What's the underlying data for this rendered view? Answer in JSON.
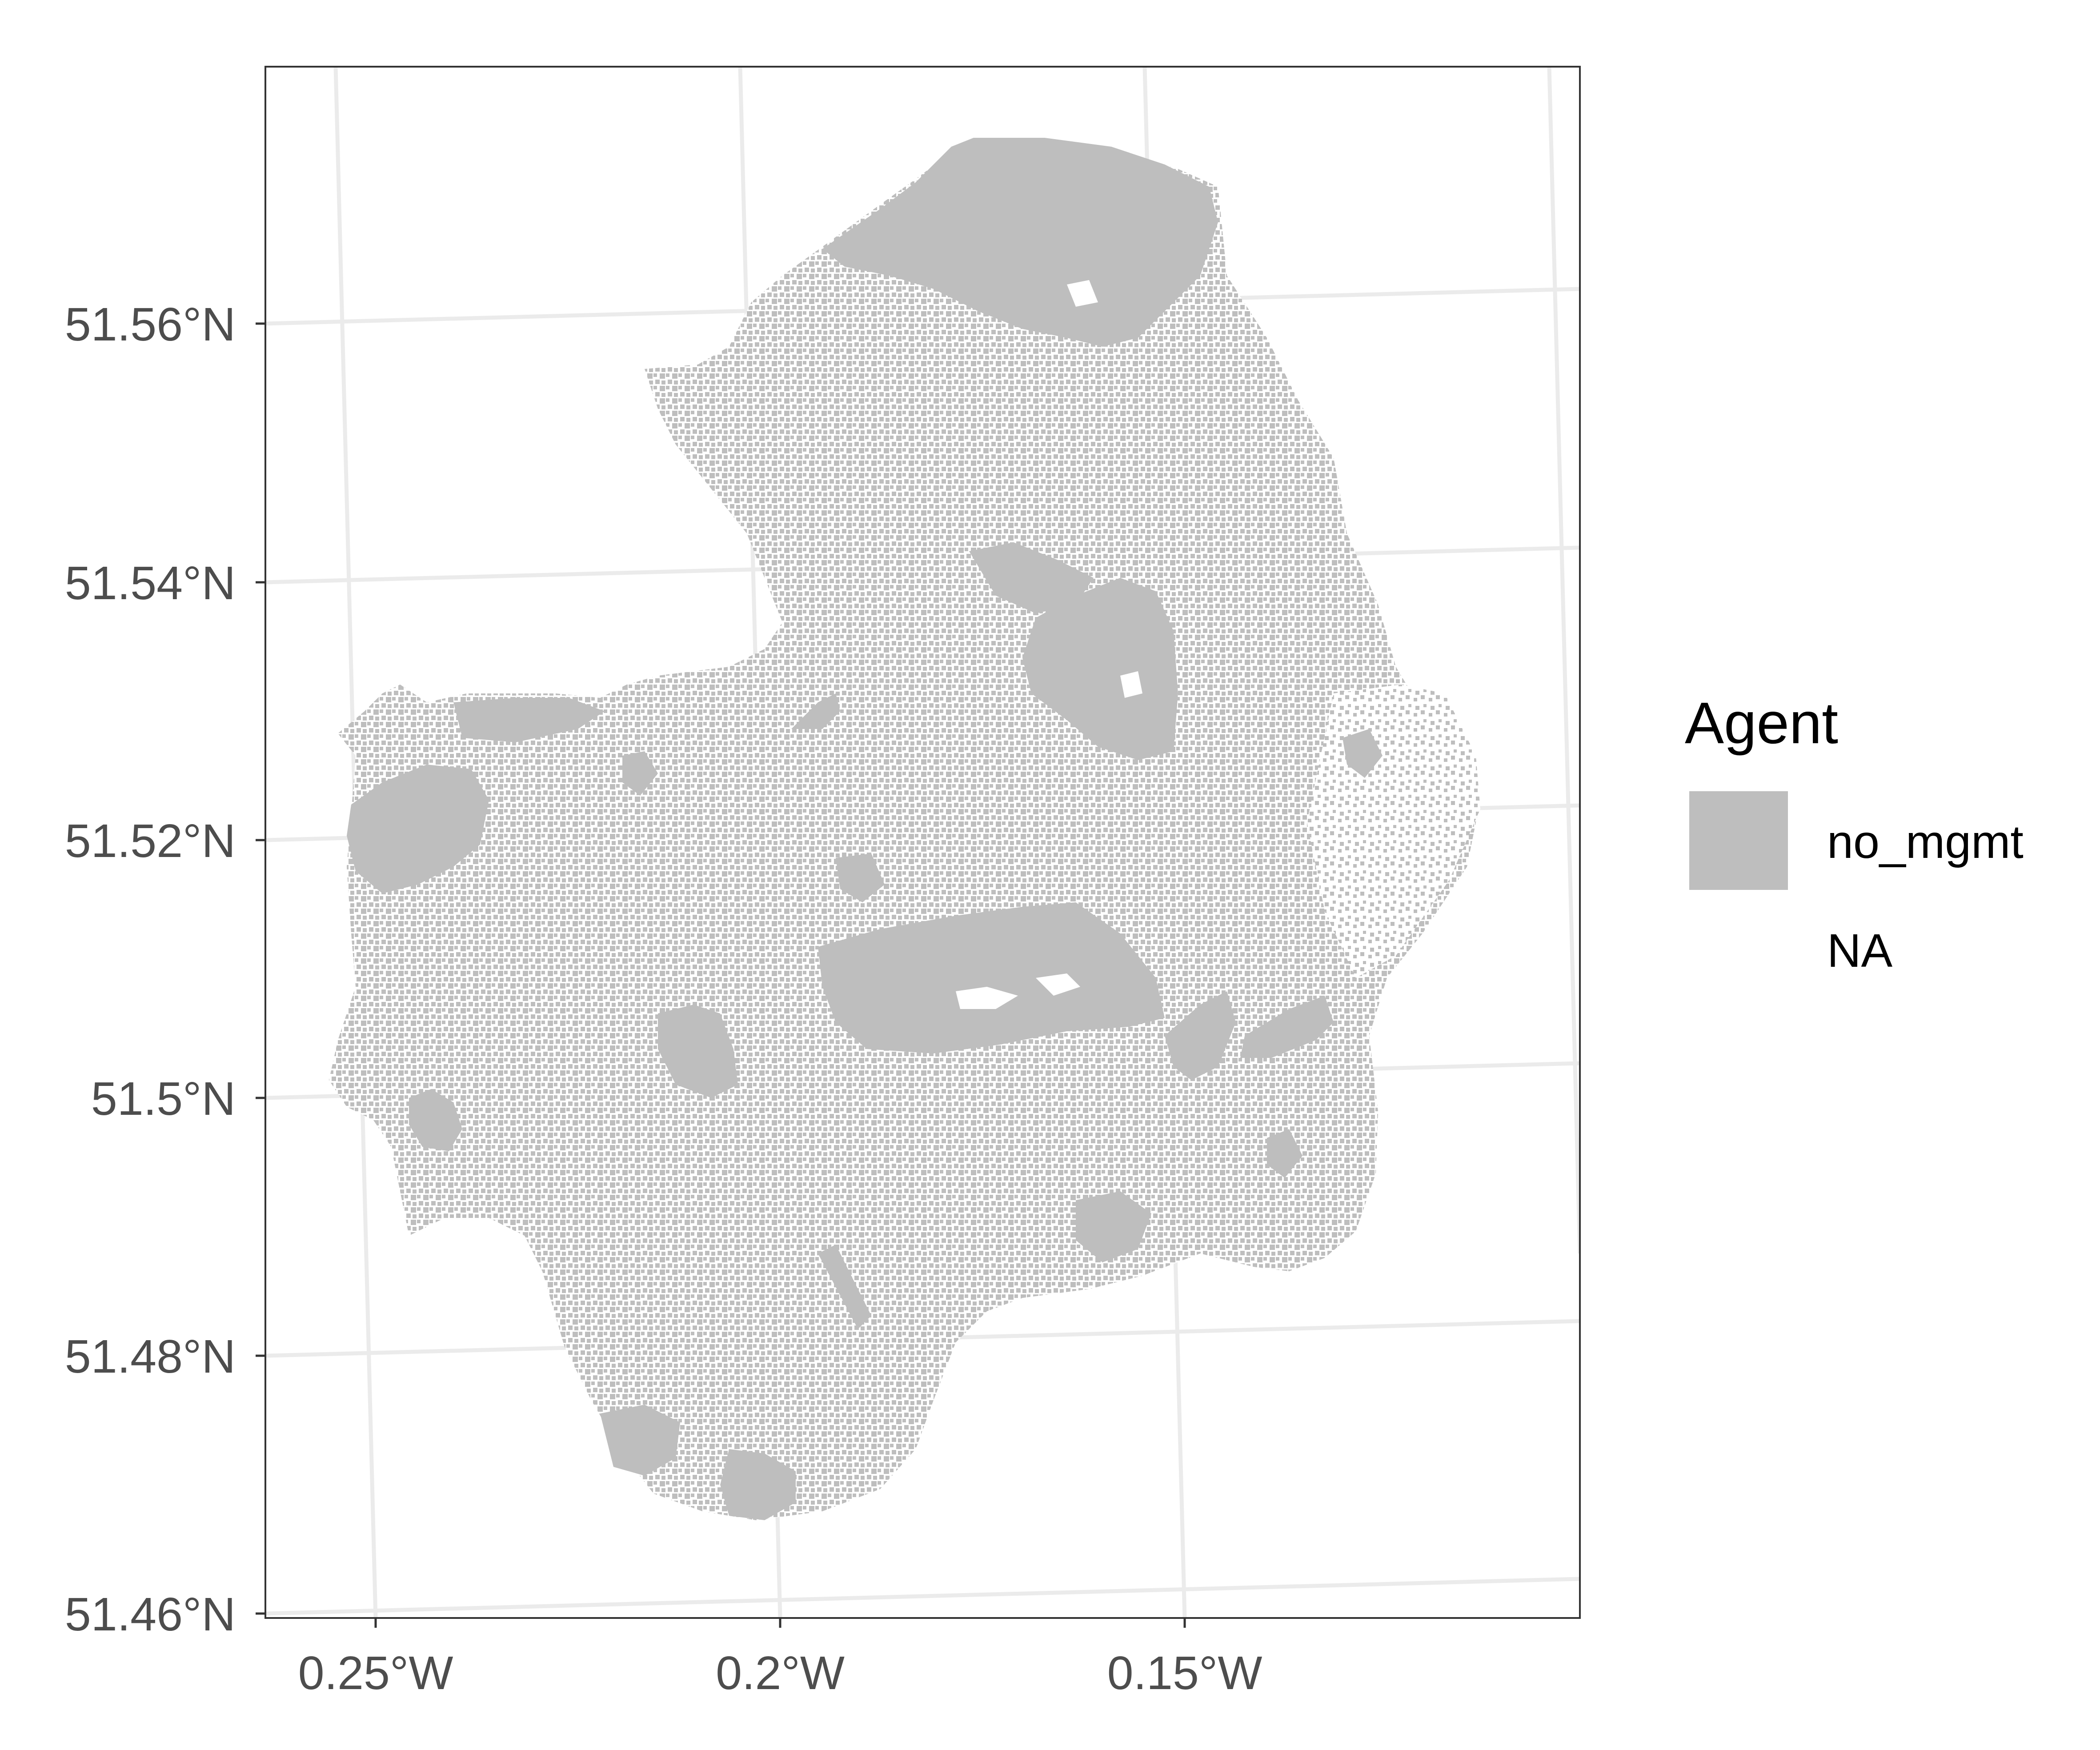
{
  "map": {
    "x_axis": {
      "ticks": [
        {
          "value": -0.25,
          "label": "0.25°W"
        },
        {
          "value": -0.2,
          "label": "0.2°W"
        },
        {
          "value": -0.15,
          "label": "0.15°W"
        }
      ]
    },
    "y_axis": {
      "ticks": [
        {
          "value": 51.46,
          "label": "51.46°N"
        },
        {
          "value": 51.48,
          "label": "51.48°N"
        },
        {
          "value": 51.5,
          "label": "51.5°N"
        },
        {
          "value": 51.52,
          "label": "51.52°N"
        },
        {
          "value": 51.54,
          "label": "51.54°N"
        },
        {
          "value": 51.56,
          "label": "51.56°N"
        }
      ]
    },
    "legend": {
      "title": "Agent",
      "position": "right",
      "items": [
        {
          "label": "no_mgmt",
          "color": "#bebebe"
        },
        {
          "label": "NA",
          "color": "none"
        }
      ]
    },
    "colors": {
      "fill": "#bebebe",
      "gridline": "#ebebeb",
      "panel_border": "#333333",
      "background": "#ffffff"
    },
    "grid": true
  }
}
